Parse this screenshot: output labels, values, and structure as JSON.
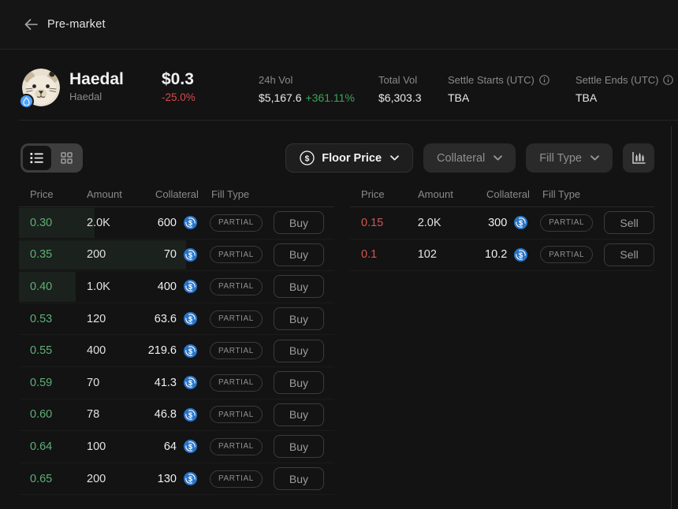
{
  "header": {
    "title": "Pre-market"
  },
  "token": {
    "name": "Haedal",
    "symbol": "Haedal",
    "price": "$0.3",
    "change": "-25.0%",
    "stats": {
      "vol24": {
        "label": "24h Vol",
        "value": "$5,167.6",
        "change": "+361.11%"
      },
      "total_vol": {
        "label": "Total Vol",
        "value": "$6,303.3"
      },
      "settle_starts": {
        "label": "Settle Starts (UTC)",
        "value": "TBA"
      },
      "settle_ends": {
        "label": "Settle Ends (UTC)",
        "value": "TBA"
      }
    }
  },
  "toolbar": {
    "view_icons": {
      "list": "list-view-icon",
      "grid": "grid-view-icon"
    },
    "floor_price": {
      "label": "Floor Price",
      "icon": "dollar-circle-icon"
    },
    "collateral": {
      "label": "Collateral"
    },
    "fill_type": {
      "label": "Fill Type"
    },
    "chart_icon": "candlestick-chart-icon"
  },
  "orderbook": {
    "columns": {
      "price": "Price",
      "amount": "Amount",
      "collateral": "Collateral",
      "fill_type": "Fill Type"
    },
    "collateral_icon": "usdc-icon",
    "buy": {
      "action_label": "Buy",
      "fill_type_label": "PARTIAL",
      "rows": [
        {
          "price": "0.30",
          "amount": "2.0K",
          "collateral": "600",
          "depth_pct": 24
        },
        {
          "price": "0.35",
          "amount": "200",
          "collateral": "70",
          "depth_pct": 53
        },
        {
          "price": "0.40",
          "amount": "1.0K",
          "collateral": "400",
          "depth_pct": 18
        },
        {
          "price": "0.53",
          "amount": "120",
          "collateral": "63.6",
          "depth_pct": 0
        },
        {
          "price": "0.55",
          "amount": "400",
          "collateral": "219.6",
          "depth_pct": 0
        },
        {
          "price": "0.59",
          "amount": "70",
          "collateral": "41.3",
          "depth_pct": 0
        },
        {
          "price": "0.60",
          "amount": "78",
          "collateral": "46.8",
          "depth_pct": 0
        },
        {
          "price": "0.64",
          "amount": "100",
          "collateral": "64",
          "depth_pct": 0
        },
        {
          "price": "0.65",
          "amount": "200",
          "collateral": "130",
          "depth_pct": 0
        }
      ]
    },
    "sell": {
      "action_label": "Sell",
      "fill_type_label": "PARTIAL",
      "rows": [
        {
          "price": "0.15",
          "amount": "2.0K",
          "collateral": "300"
        },
        {
          "price": "0.1",
          "amount": "102",
          "collateral": "10.2"
        }
      ]
    }
  },
  "colors": {
    "background": "#131313",
    "buy_green": "#5CB176",
    "sell_red": "#D25555",
    "change_red": "#D64B4B",
    "change_green": "#3AA558",
    "usdc_blue": "#2775CA",
    "sui_blue": "#4DA2FF"
  }
}
